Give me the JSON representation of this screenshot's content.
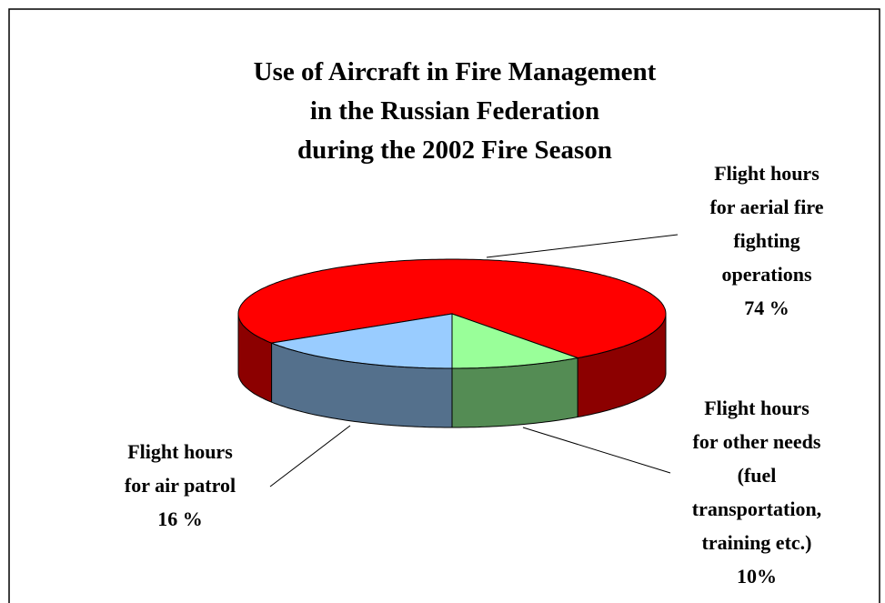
{
  "chart_data": {
    "type": "pie3d",
    "title": "Use of Aircraft in Fire Management\nin the Russian Federation\nduring the 2002 Fire Season",
    "categories": [
      "Flight hours\nfor aerial fire\nfighting\noperations",
      "Flight hours\nfor other needs\n(fuel\ntransportation,\ntraining etc.)",
      "Flight hours\nfor air patrol"
    ],
    "values": [
      74,
      10,
      16
    ],
    "value_labels": [
      "74 %",
      "10%",
      "16 %"
    ],
    "colors": [
      "#ff0000",
      "#99ff99",
      "#99ccff"
    ]
  }
}
